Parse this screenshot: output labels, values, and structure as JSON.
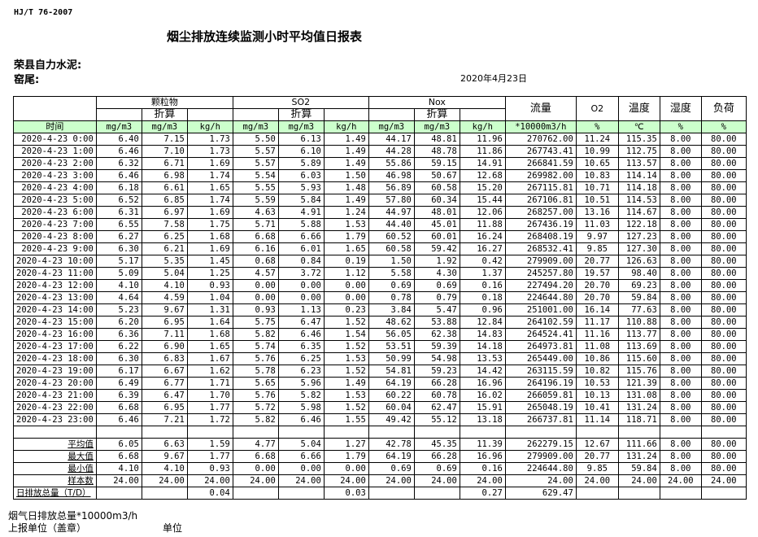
{
  "standard": "HJ/T  76-2007",
  "title": "烟尘排放连续监测小时平均值日报表",
  "company": "荣县自力水泥:",
  "kiln": "窑尾:",
  "date": "2020年4月23日",
  "header": {
    "groups": [
      "颗粒物",
      "SO2",
      "Nox"
    ],
    "converted": "折算",
    "flow": "流量",
    "o2": "O2",
    "temp": "温度",
    "humidity": "湿度",
    "load": "负荷",
    "time": "时间",
    "units": [
      "mg/m3",
      "mg/m3",
      "kg/h",
      "mg/m3",
      "mg/m3",
      "kg/h",
      "mg/m3",
      "mg/m3",
      "kg/h",
      "*10000m3/h",
      "%",
      "℃",
      "%",
      "%"
    ]
  },
  "rows": [
    [
      "2020-4-23 0:00",
      "6.40",
      "7.15",
      "1.73",
      "5.50",
      "6.13",
      "1.49",
      "44.17",
      "48.81",
      "11.96",
      "270762.00",
      "11.24",
      "115.35",
      "8.00",
      "80.00"
    ],
    [
      "2020-4-23 1:00",
      "6.46",
      "7.10",
      "1.73",
      "5.57",
      "6.10",
      "1.49",
      "44.28",
      "48.78",
      "11.86",
      "267743.41",
      "10.99",
      "112.75",
      "8.00",
      "80.00"
    ],
    [
      "2020-4-23 2:00",
      "6.32",
      "6.71",
      "1.69",
      "5.57",
      "5.89",
      "1.49",
      "55.86",
      "59.15",
      "14.91",
      "266841.59",
      "10.65",
      "113.57",
      "8.00",
      "80.00"
    ],
    [
      "2020-4-23 3:00",
      "6.46",
      "6.98",
      "1.74",
      "5.54",
      "6.03",
      "1.50",
      "46.98",
      "50.67",
      "12.68",
      "269982.00",
      "10.83",
      "114.14",
      "8.00",
      "80.00"
    ],
    [
      "2020-4-23 4:00",
      "6.18",
      "6.61",
      "1.65",
      "5.55",
      "5.93",
      "1.48",
      "56.89",
      "60.58",
      "15.20",
      "267115.81",
      "10.71",
      "114.18",
      "8.00",
      "80.00"
    ],
    [
      "2020-4-23 5:00",
      "6.52",
      "6.85",
      "1.74",
      "5.59",
      "5.84",
      "1.49",
      "57.80",
      "60.34",
      "15.44",
      "267106.81",
      "10.51",
      "114.53",
      "8.00",
      "80.00"
    ],
    [
      "2020-4-23 6:00",
      "6.31",
      "6.97",
      "1.69",
      "4.63",
      "4.91",
      "1.24",
      "44.97",
      "48.01",
      "12.06",
      "268257.00",
      "13.16",
      "114.67",
      "8.00",
      "80.00"
    ],
    [
      "2020-4-23 7:00",
      "6.55",
      "7.58",
      "1.75",
      "5.71",
      "5.88",
      "1.53",
      "44.40",
      "45.01",
      "11.88",
      "267436.19",
      "11.03",
      "122.18",
      "8.00",
      "80.00"
    ],
    [
      "2020-4-23 8:00",
      "6.27",
      "6.25",
      "1.68",
      "6.68",
      "6.66",
      "1.79",
      "60.52",
      "60.01",
      "16.24",
      "268408.19",
      "9.97",
      "127.23",
      "8.00",
      "80.00"
    ],
    [
      "2020-4-23 9:00",
      "6.30",
      "6.21",
      "1.69",
      "6.16",
      "6.01",
      "1.65",
      "60.58",
      "59.42",
      "16.27",
      "268532.41",
      "9.85",
      "127.30",
      "8.00",
      "80.00"
    ],
    [
      "2020-4-23 10:00",
      "5.17",
      "5.35",
      "1.45",
      "0.68",
      "0.84",
      "0.19",
      "1.50",
      "1.92",
      "0.42",
      "279909.00",
      "20.77",
      "126.63",
      "8.00",
      "80.00"
    ],
    [
      "2020-4-23 11:00",
      "5.09",
      "5.04",
      "1.25",
      "4.57",
      "3.72",
      "1.12",
      "5.58",
      "4.30",
      "1.37",
      "245257.80",
      "19.57",
      "98.40",
      "8.00",
      "80.00"
    ],
    [
      "2020-4-23 12:00",
      "4.10",
      "4.10",
      "0.93",
      "0.00",
      "0.00",
      "0.00",
      "0.69",
      "0.69",
      "0.16",
      "227494.20",
      "20.70",
      "69.23",
      "8.00",
      "80.00"
    ],
    [
      "2020-4-23 13:00",
      "4.64",
      "4.59",
      "1.04",
      "0.00",
      "0.00",
      "0.00",
      "0.78",
      "0.79",
      "0.18",
      "224644.80",
      "20.70",
      "59.84",
      "8.00",
      "80.00"
    ],
    [
      "2020-4-23 14:00",
      "5.23",
      "9.67",
      "1.31",
      "0.93",
      "1.13",
      "0.23",
      "3.84",
      "5.47",
      "0.96",
      "251001.00",
      "16.14",
      "77.63",
      "8.00",
      "80.00"
    ],
    [
      "2020-4-23 15:00",
      "6.20",
      "6.95",
      "1.64",
      "5.75",
      "6.47",
      "1.52",
      "48.62",
      "53.88",
      "12.84",
      "264102.59",
      "11.17",
      "110.88",
      "8.00",
      "80.00"
    ],
    [
      "2020-4-23 16:00",
      "6.36",
      "7.11",
      "1.68",
      "5.82",
      "6.46",
      "1.54",
      "56.05",
      "62.38",
      "14.83",
      "264524.41",
      "11.16",
      "113.77",
      "8.00",
      "80.00"
    ],
    [
      "2020-4-23 17:00",
      "6.22",
      "6.90",
      "1.65",
      "5.74",
      "6.35",
      "1.52",
      "53.51",
      "59.39",
      "14.18",
      "264973.81",
      "11.08",
      "113.69",
      "8.00",
      "80.00"
    ],
    [
      "2020-4-23 18:00",
      "6.30",
      "6.83",
      "1.67",
      "5.76",
      "6.25",
      "1.53",
      "50.99",
      "54.98",
      "13.53",
      "265449.00",
      "10.86",
      "115.60",
      "8.00",
      "80.00"
    ],
    [
      "2020-4-23 19:00",
      "6.17",
      "6.67",
      "1.62",
      "5.78",
      "6.23",
      "1.52",
      "54.81",
      "59.23",
      "14.42",
      "263115.59",
      "10.82",
      "115.76",
      "8.00",
      "80.00"
    ],
    [
      "2020-4-23 20:00",
      "6.49",
      "6.77",
      "1.71",
      "5.65",
      "5.96",
      "1.49",
      "64.19",
      "66.28",
      "16.96",
      "264196.19",
      "10.53",
      "121.39",
      "8.00",
      "80.00"
    ],
    [
      "2020-4-23 21:00",
      "6.39",
      "6.47",
      "1.70",
      "5.76",
      "5.82",
      "1.53",
      "60.22",
      "60.78",
      "16.02",
      "266059.81",
      "10.13",
      "131.08",
      "8.00",
      "80.00"
    ],
    [
      "2020-4-23 22:00",
      "6.68",
      "6.95",
      "1.77",
      "5.72",
      "5.98",
      "1.52",
      "60.04",
      "62.47",
      "15.91",
      "265048.19",
      "10.41",
      "131.24",
      "8.00",
      "80.00"
    ],
    [
      "2020-4-23 23:00",
      "6.46",
      "7.21",
      "1.72",
      "5.82",
      "6.46",
      "1.55",
      "49.42",
      "55.12",
      "13.18",
      "266737.81",
      "11.14",
      "118.71",
      "8.00",
      "80.00"
    ]
  ],
  "summary": [
    [
      "平均值",
      "6.05",
      "6.63",
      "1.59",
      "4.77",
      "5.04",
      "1.27",
      "42.78",
      "45.35",
      "11.39",
      "262279.15",
      "12.67",
      "111.66",
      "8.00",
      "80.00"
    ],
    [
      "最大值",
      "6.68",
      "9.67",
      "1.77",
      "6.68",
      "6.66",
      "1.79",
      "64.19",
      "66.28",
      "16.96",
      "279909.00",
      "20.77",
      "131.24",
      "8.00",
      "80.00"
    ],
    [
      "最小值",
      "4.10",
      "4.10",
      "0.93",
      "0.00",
      "0.00",
      "0.00",
      "0.69",
      "0.69",
      "0.16",
      "224644.80",
      "9.85",
      "59.84",
      "8.00",
      "80.00"
    ],
    [
      "样本数",
      "24.00",
      "24.00",
      "24.00",
      "24.00",
      "24.00",
      "24.00",
      "24.00",
      "24.00",
      "24.00",
      "24.00",
      "24.00",
      "24.00",
      "24.00",
      "24.00"
    ],
    [
      "日排放总量（T/D）",
      "",
      "",
      "0.04",
      "",
      "",
      "0.03",
      "",
      "",
      "0.27",
      "629.47",
      "",
      "",
      "",
      ""
    ]
  ],
  "footer": {
    "flue_total": "烟气日排放总量*10000m3/h",
    "reporter": "上报单位（盖章）",
    "unit": "单位"
  }
}
